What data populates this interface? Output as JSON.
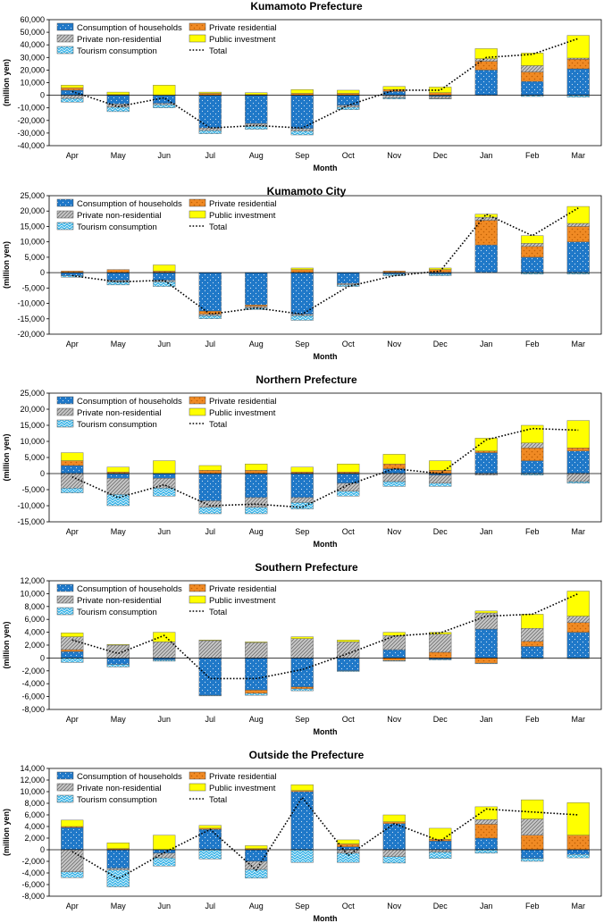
{
  "legend_labels": {
    "hh": "Consumption of households",
    "res": "Private residential",
    "nonres": "Private non-residential",
    "pub": "Public investment",
    "tour": "Tourism consumption",
    "total": "Total"
  },
  "colors": {
    "hh": "#1f78c8",
    "res": "#f08a24",
    "nonres": "#b8b8b8",
    "pub": "#ffff00",
    "tour": "#3fb6e8",
    "total": "#000000"
  },
  "chart_data": [
    {
      "type": "bar",
      "stacked": true,
      "title": "Kumamoto Prefecture",
      "xlabel": "Month",
      "ylabel": "(million yen)",
      "categories": [
        "Apr",
        "May",
        "Jun",
        "Jul",
        "Aug",
        "Sep",
        "Oct",
        "Nov",
        "Dec",
        "Jan",
        "Feb",
        "Mar"
      ],
      "ylim": [
        -40000,
        60000
      ],
      "yticks": [
        -40000,
        -30000,
        -20000,
        -10000,
        0,
        10000,
        20000,
        30000,
        40000,
        50000,
        60000
      ],
      "ytick_labels": [
        "-40,000",
        "-30,000",
        "-20,000",
        "-10,000",
        "0",
        "10,000",
        "20,000",
        "30,000",
        "40,000",
        "50,000",
        "60,000"
      ],
      "series": [
        {
          "key": "hh",
          "name": "Consumption of households",
          "values": [
            4000,
            -7000,
            -6500,
            -26000,
            -22500,
            -26500,
            -8000,
            3000,
            -1000,
            20000,
            11000,
            21000
          ]
        },
        {
          "key": "res",
          "name": "Private residential",
          "values": [
            2000,
            500,
            0,
            1500,
            500,
            1500,
            1500,
            1500,
            2000,
            7000,
            7500,
            7500
          ]
        },
        {
          "key": "nonres",
          "name": "Private non-residential",
          "values": [
            -2500,
            -2500,
            -1000,
            -2000,
            -2000,
            -2000,
            -1500,
            -2000,
            -1500,
            2000,
            5000,
            1000
          ]
        },
        {
          "key": "pub",
          "name": "Public investment",
          "values": [
            2000,
            2000,
            8000,
            1000,
            1500,
            3000,
            2500,
            2500,
            4500,
            8000,
            10000,
            18000
          ]
        },
        {
          "key": "tour",
          "name": "Tourism consumption",
          "values": [
            -3000,
            -3500,
            -2500,
            -2500,
            -2500,
            -3000,
            -2000,
            -1000,
            -500,
            0,
            -1000,
            -1500
          ]
        }
      ],
      "total": [
        3000,
        -9000,
        -2000,
        -26000,
        -24000,
        -26000,
        -8000,
        4000,
        4000,
        30000,
        32500,
        45000
      ]
    },
    {
      "type": "bar",
      "stacked": true,
      "title": "Kumamoto City",
      "xlabel": "Month",
      "ylabel": "(million yen)",
      "categories": [
        "Apr",
        "May",
        "Jun",
        "Jul",
        "Aug",
        "Sep",
        "Oct",
        "Nov",
        "Dec",
        "Jan",
        "Feb",
        "Mar"
      ],
      "ylim": [
        -20000,
        25000
      ],
      "yticks": [
        -20000,
        -15000,
        -10000,
        -5000,
        0,
        5000,
        10000,
        15000,
        20000,
        25000
      ],
      "ytick_labels": [
        "-20,000",
        "-15,000",
        "-10,000",
        "-5,000",
        "0",
        "5,000",
        "10,000",
        "15,000",
        "20,000",
        "25,000"
      ],
      "series": [
        {
          "key": "hh",
          "name": "Consumption of households",
          "values": [
            -1000,
            -2500,
            -2500,
            -12500,
            -10500,
            -13500,
            -3500,
            -500,
            -500,
            9000,
            5000,
            10000
          ]
        },
        {
          "key": "res",
          "name": "Private residential",
          "values": [
            500,
            1000,
            500,
            -1000,
            -500,
            1000,
            0,
            500,
            1000,
            8000,
            3500,
            5000
          ]
        },
        {
          "key": "nonres",
          "name": "Private non-residential",
          "values": [
            0,
            -500,
            -500,
            -500,
            -500,
            -500,
            -500,
            0,
            0,
            1000,
            1000,
            1000
          ]
        },
        {
          "key": "pub",
          "name": "Public investment",
          "values": [
            0,
            0,
            2000,
            0,
            0,
            500,
            0,
            0,
            500,
            1000,
            2500,
            5500
          ]
        },
        {
          "key": "tour",
          "name": "Tourism consumption",
          "values": [
            -500,
            -1000,
            -1500,
            -1000,
            -500,
            -1500,
            -500,
            -500,
            -500,
            0,
            -500,
            -500
          ]
        }
      ],
      "total": [
        -1000,
        -3000,
        -2500,
        -13500,
        -11500,
        -13500,
        -4500,
        -1000,
        500,
        19000,
        12000,
        21000
      ]
    },
    {
      "type": "bar",
      "stacked": true,
      "title": "Northern Prefecture",
      "xlabel": "Month",
      "ylabel": "(million yen)",
      "categories": [
        "Apr",
        "May",
        "Jun",
        "Jul",
        "Aug",
        "Sep",
        "Oct",
        "Nov",
        "Dec",
        "Jan",
        "Feb",
        "Mar"
      ],
      "ylim": [
        -15000,
        25000
      ],
      "yticks": [
        -15000,
        -10000,
        -5000,
        0,
        5000,
        10000,
        15000,
        20000,
        25000
      ],
      "ytick_labels": [
        "-15,000",
        "-10,000",
        "-5,000",
        "0",
        "5,000",
        "10,000",
        "15,000",
        "20,000",
        "25,000"
      ],
      "series": [
        {
          "key": "hh",
          "name": "Consumption of households",
          "values": [
            2500,
            -1500,
            -1500,
            -8500,
            -7500,
            -7500,
            -3000,
            1500,
            -500,
            6500,
            4000,
            7000
          ]
        },
        {
          "key": "res",
          "name": "Private residential",
          "values": [
            1500,
            500,
            0,
            1000,
            1000,
            500,
            500,
            1500,
            1000,
            500,
            4000,
            1000
          ]
        },
        {
          "key": "nonres",
          "name": "Private non-residential",
          "values": [
            -4500,
            -5000,
            -3000,
            -2000,
            -3000,
            -1500,
            -2500,
            -2500,
            -2500,
            -500,
            1500,
            -2500
          ]
        },
        {
          "key": "pub",
          "name": "Public investment",
          "values": [
            2500,
            1500,
            4000,
            1500,
            2000,
            1500,
            2500,
            3000,
            3000,
            4000,
            5500,
            8500
          ]
        },
        {
          "key": "tour",
          "name": "Tourism consumption",
          "values": [
            -1500,
            -3500,
            -2500,
            -2000,
            -2000,
            -2000,
            -1500,
            -1500,
            -1000,
            0,
            -500,
            -500
          ]
        }
      ],
      "total": [
        -1000,
        -7500,
        -3500,
        -10000,
        -9500,
        -10500,
        -3500,
        1500,
        0,
        10500,
        14000,
        13500
      ]
    },
    {
      "type": "bar",
      "stacked": true,
      "title": "Southern Prefecture",
      "xlabel": "Month",
      "ylabel": "(million yen)",
      "categories": [
        "Apr",
        "May",
        "Jun",
        "Jul",
        "Aug",
        "Sep",
        "Oct",
        "Nov",
        "Dec",
        "Jan",
        "Feb",
        "Mar"
      ],
      "ylim": [
        -8000,
        12000
      ],
      "yticks": [
        -8000,
        -6000,
        -4000,
        -2000,
        0,
        2000,
        4000,
        6000,
        8000,
        10000,
        12000
      ],
      "ytick_labels": [
        "-8,000",
        "-6,000",
        "-4,000",
        "-2,000",
        "0",
        "2,000",
        "4,000",
        "6,000",
        "8,000",
        "10,000",
        "12,000"
      ],
      "series": [
        {
          "key": "hh",
          "name": "Consumption of households",
          "values": [
            1000,
            -1000,
            -300,
            -5800,
            -5000,
            -4500,
            -2000,
            1300,
            -200,
            4500,
            1800,
            4000
          ]
        },
        {
          "key": "res",
          "name": "Private residential",
          "values": [
            300,
            0,
            0,
            0,
            -500,
            -300,
            0,
            -400,
            900,
            -800,
            800,
            1500
          ]
        },
        {
          "key": "nonres",
          "name": "Private non-residential",
          "values": [
            2000,
            2000,
            2500,
            2700,
            2400,
            3000,
            2500,
            2200,
            2800,
            2500,
            2000,
            1000
          ]
        },
        {
          "key": "pub",
          "name": "Public investment",
          "values": [
            600,
            100,
            1500,
            100,
            100,
            300,
            300,
            500,
            300,
            300,
            2200,
            3900
          ]
        },
        {
          "key": "tour",
          "name": "Tourism consumption",
          "values": [
            -700,
            -400,
            -200,
            -100,
            -300,
            -300,
            -100,
            -100,
            -100,
            -100,
            -100,
            -100
          ]
        }
      ],
      "total": [
        2800,
        700,
        3500,
        -3200,
        -3200,
        -1800,
        700,
        3400,
        3900,
        6500,
        6800,
        10000
      ]
    },
    {
      "type": "bar",
      "stacked": true,
      "title": "Outside the Prefecture",
      "xlabel": "Month",
      "ylabel": "(million yen)",
      "categories": [
        "Apr",
        "May",
        "Jun",
        "Jul",
        "Aug",
        "Sep",
        "Oct",
        "Nov",
        "Dec",
        "Jan",
        "Feb",
        "Mar"
      ],
      "ylim": [
        -8000,
        14000
      ],
      "yticks": [
        -8000,
        -6000,
        -4000,
        -2000,
        0,
        2000,
        4000,
        6000,
        8000,
        10000,
        12000,
        14000
      ],
      "ytick_labels": [
        "-8,000",
        "-6,000",
        "-4,000",
        "-2,000",
        "0",
        "2,000",
        "4,000",
        "6,000",
        "8,000",
        "10,000",
        "12,000",
        "14,000"
      ],
      "series": [
        {
          "key": "hh",
          "name": "Consumption of households",
          "values": [
            3800,
            -3200,
            -600,
            3500,
            -2000,
            10000,
            500,
            4500,
            1500,
            2000,
            -1500,
            -800
          ]
        },
        {
          "key": "res",
          "name": "Private residential",
          "values": [
            200,
            200,
            0,
            200,
            200,
            200,
            500,
            300,
            300,
            2400,
            2500,
            2500
          ]
        },
        {
          "key": "nonres",
          "name": "Private non-residential",
          "values": [
            -3800,
            -300,
            -800,
            0,
            -1400,
            0,
            -600,
            -1200,
            -400,
            800,
            2800,
            0
          ]
        },
        {
          "key": "pub",
          "name": "Public investment",
          "values": [
            1100,
            1000,
            2500,
            500,
            500,
            1000,
            700,
            1200,
            1900,
            2200,
            3300,
            5600
          ]
        },
        {
          "key": "tour",
          "name": "Tourism consumption",
          "values": [
            -1000,
            -2900,
            -1400,
            -1600,
            -1500,
            -2200,
            -1600,
            -1100,
            -1100,
            -600,
            -500,
            -600
          ]
        }
      ],
      "total": [
        -300,
        -5000,
        -500,
        3500,
        -3500,
        9000,
        -1000,
        4500,
        1500,
        7000,
        6500,
        6000
      ]
    }
  ]
}
